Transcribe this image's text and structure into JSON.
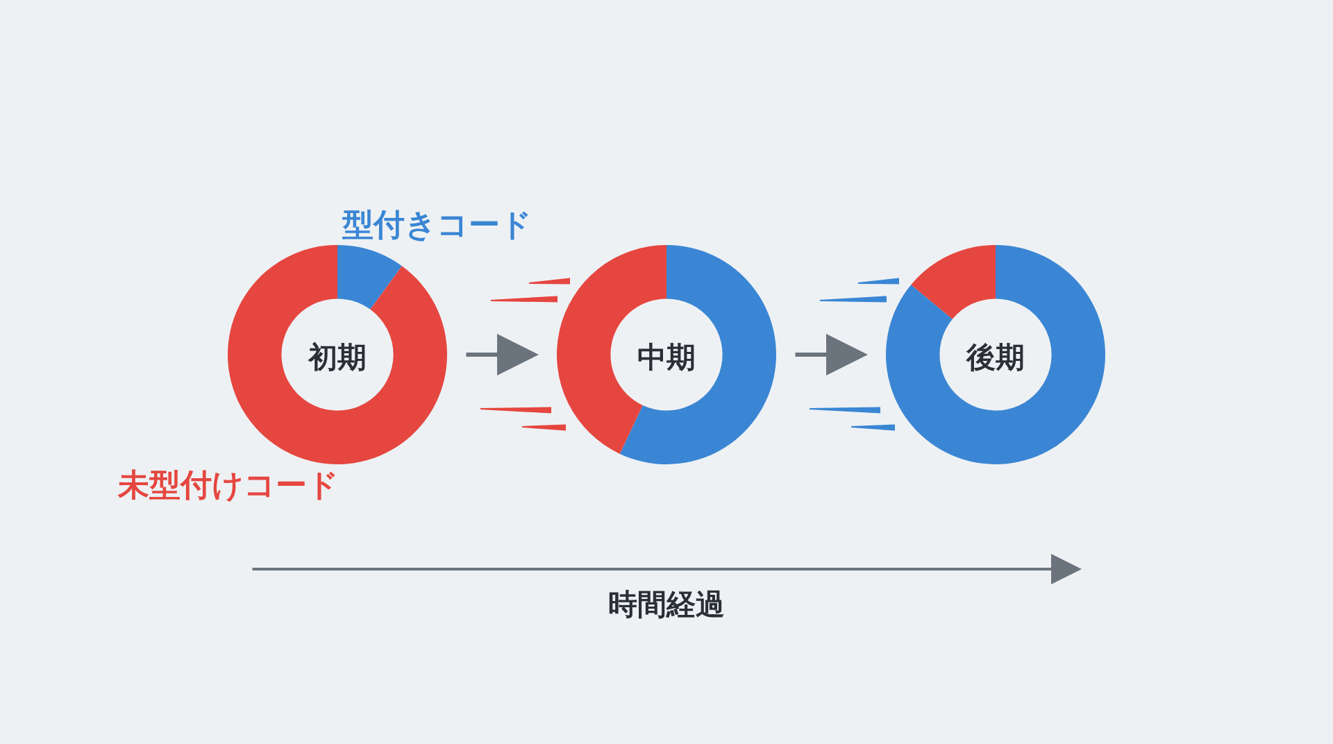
{
  "chart_data": [
    {
      "type": "donut",
      "title": "初期",
      "categories": [
        "型付きコード",
        "未型付けコード"
      ],
      "values": [
        10,
        90
      ],
      "colors": [
        "#3a86d4",
        "#e5463f"
      ]
    },
    {
      "type": "donut",
      "title": "中期",
      "categories": [
        null,
        null
      ],
      "values": [
        57,
        43
      ],
      "colors": [
        "#3a86d4",
        "#e5463f"
      ],
      "annotations": [
        "時間経過"
      ]
    },
    {
      "type": "donut",
      "title": "後期",
      "categories": [
        null,
        null
      ],
      "values": [
        86,
        14
      ],
      "colors": [
        "#3a86d4",
        "#e5463f"
      ]
    }
  ]
}
